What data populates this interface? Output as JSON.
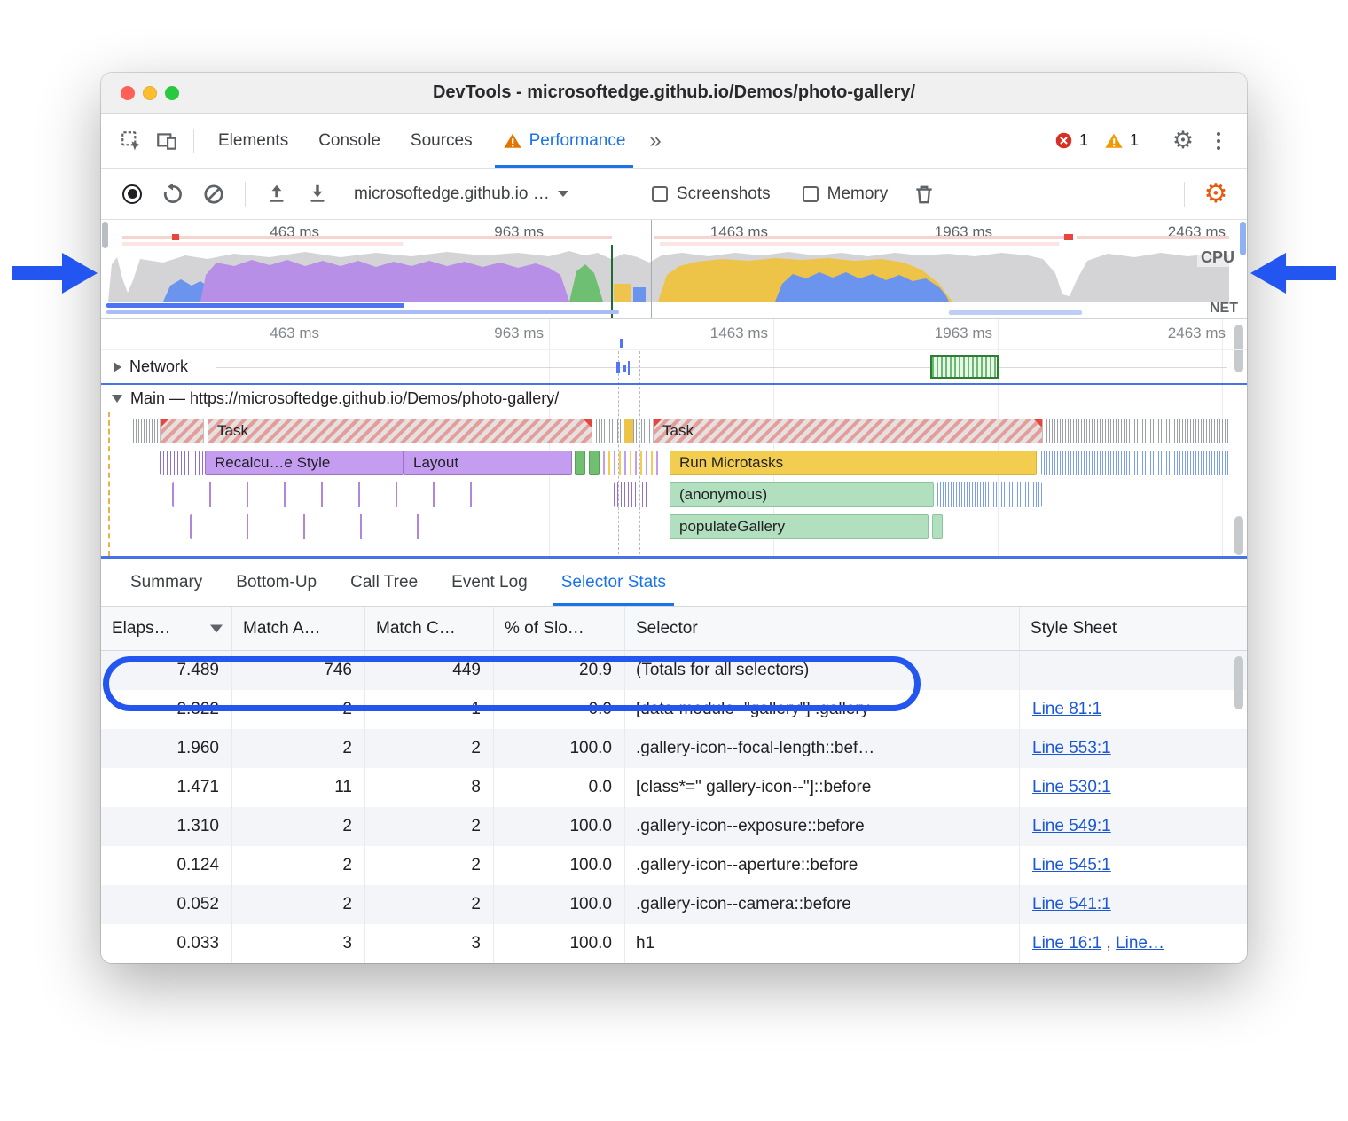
{
  "window": {
    "title": "DevTools - microsoftedge.github.io/Demos/photo-gallery/"
  },
  "tabbar": {
    "tabs": [
      {
        "label": "Elements"
      },
      {
        "label": "Console"
      },
      {
        "label": "Sources"
      },
      {
        "label": "Performance"
      }
    ],
    "more_tabs": "»",
    "error_count": "1",
    "warning_count": "1"
  },
  "toolbar": {
    "history_select": "microsoftedge.github.io …",
    "screenshots_label": "Screenshots",
    "memory_label": "Memory"
  },
  "overview": {
    "time_labels": [
      "463 ms",
      "963 ms",
      "1463 ms",
      "1963 ms",
      "2463 ms"
    ],
    "cpu_label": "CPU",
    "net_label": "NET"
  },
  "timeline": {
    "time_labels": [
      "463 ms",
      "963 ms",
      "1463 ms",
      "1963 ms",
      "2463 ms"
    ],
    "network_label": "Network",
    "main_label": "Main — https://microsoftedge.github.io/Demos/photo-gallery/",
    "bars": {
      "task_a": "Task",
      "task_b": "Task",
      "recalc_style": "Recalcu…e Style",
      "layout": "Layout",
      "run_microtasks": "Run Microtasks",
      "anonymous": "(anonymous)",
      "populate_gallery": "populateGallery"
    }
  },
  "bottom_tabs": [
    {
      "label": "Summary"
    },
    {
      "label": "Bottom-Up"
    },
    {
      "label": "Call Tree"
    },
    {
      "label": "Event Log"
    },
    {
      "label": "Selector Stats"
    }
  ],
  "table": {
    "columns": [
      "Elaps…",
      "Match A…",
      "Match C…",
      "% of Slo…",
      "Selector",
      "Style Sheet"
    ],
    "rows": [
      {
        "elapsed": "7.489",
        "match_attempts": "746",
        "match_count": "449",
        "pct_slow": "20.9",
        "selector": "(Totals for all selectors)",
        "links": []
      },
      {
        "elapsed": "2.322",
        "match_attempts": "2",
        "match_count": "1",
        "pct_slow": "0.0",
        "selector": "[data-module=\"gallery\"] .gallery",
        "links": [
          "Line 81:1"
        ]
      },
      {
        "elapsed": "1.960",
        "match_attempts": "2",
        "match_count": "2",
        "pct_slow": "100.0",
        "selector": ".gallery-icon--focal-length::bef…",
        "links": [
          "Line 553:1"
        ]
      },
      {
        "elapsed": "1.471",
        "match_attempts": "11",
        "match_count": "8",
        "pct_slow": "0.0",
        "selector": "[class*=\" gallery-icon--\"]::before",
        "links": [
          "Line 530:1"
        ]
      },
      {
        "elapsed": "1.310",
        "match_attempts": "2",
        "match_count": "2",
        "pct_slow": "100.0",
        "selector": ".gallery-icon--exposure::before",
        "links": [
          "Line 549:1"
        ]
      },
      {
        "elapsed": "0.124",
        "match_attempts": "2",
        "match_count": "2",
        "pct_slow": "100.0",
        "selector": ".gallery-icon--aperture::before",
        "links": [
          "Line 545:1"
        ]
      },
      {
        "elapsed": "0.052",
        "match_attempts": "2",
        "match_count": "2",
        "pct_slow": "100.0",
        "selector": ".gallery-icon--camera::before",
        "links": [
          "Line 541:1"
        ]
      },
      {
        "elapsed": "0.033",
        "match_attempts": "3",
        "match_count": "3",
        "pct_slow": "100.0",
        "selector": "h1",
        "links": [
          "Line 16:1",
          "Line…"
        ]
      }
    ]
  }
}
